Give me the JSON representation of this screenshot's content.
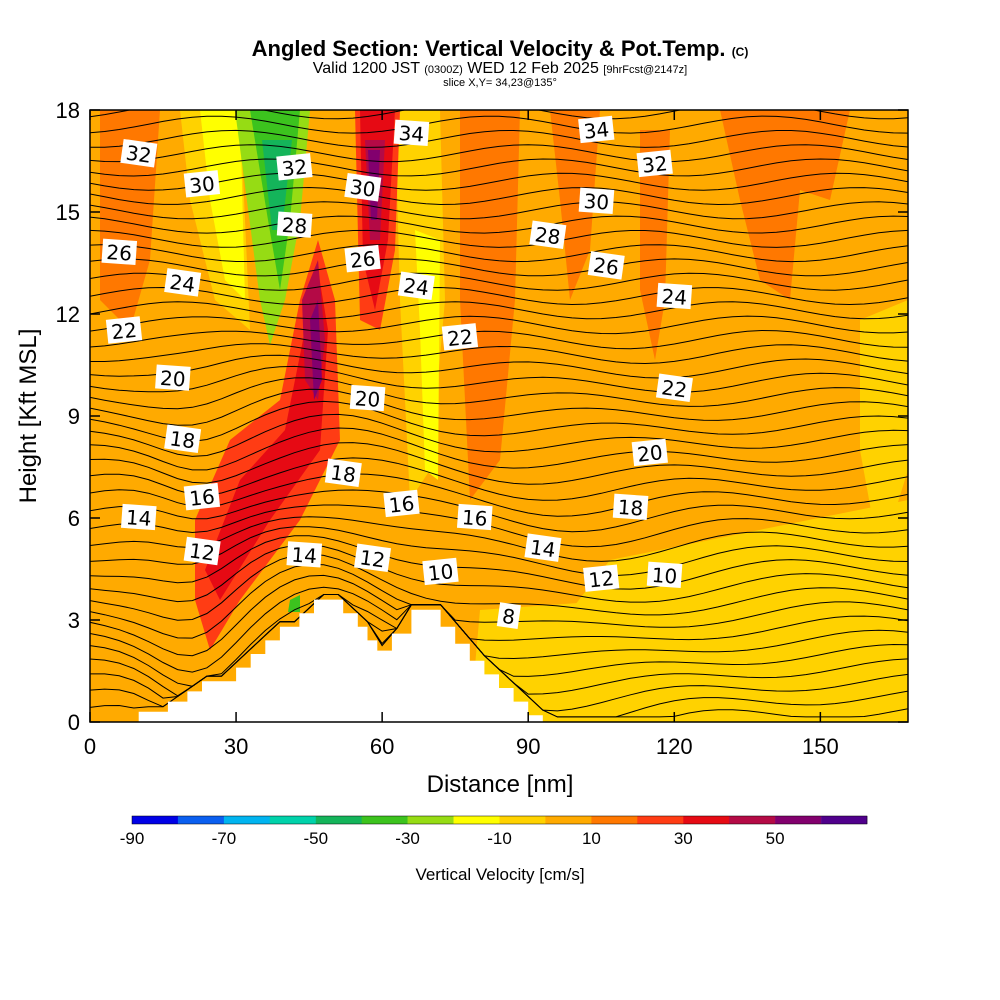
{
  "header": {
    "title": "Angled Section: Vertical Velocity & Pot.Temp.",
    "title_suffix": "(C)",
    "valid_prefix": "Valid 1200 JST",
    "valid_utc": "(0300Z)",
    "valid_date": "WED 12 Feb 2025",
    "forecast": "[9hrFcst@2147z]",
    "slice": "slice X,Y= 34,23@135°"
  },
  "chart_data": {
    "type": "heatmap",
    "xlabel": "Distance [nm]",
    "ylabel": "Height [Kft MSL]",
    "xlim": [
      0,
      168
    ],
    "ylim": [
      0,
      18
    ],
    "xticks": [
      "0",
      "30",
      "60",
      "90",
      "120",
      "150"
    ],
    "yticks": [
      "0",
      "3",
      "6",
      "9",
      "12",
      "15",
      "18"
    ],
    "colorbar": {
      "label": "Vertical Velocity [cm/s]",
      "ticks": [
        "-90",
        "-70",
        "-50",
        "-30",
        "-10",
        "10",
        "30",
        "50"
      ],
      "colors": [
        "#0000e6",
        "#0a5ff0",
        "#00b4f0",
        "#00d2aa",
        "#14b45a",
        "#3cc31e",
        "#96dc14",
        "#ffff00",
        "#ffd200",
        "#ffaa00",
        "#ff7800",
        "#ff3c14",
        "#e60a14",
        "#b40a46",
        "#82006e",
        "#50008c"
      ]
    },
    "terrain": [
      [
        0,
        0
      ],
      [
        10,
        0
      ],
      [
        10,
        0.3
      ],
      [
        16,
        0.3
      ],
      [
        16,
        0.6
      ],
      [
        20,
        0.6
      ],
      [
        20,
        0.9
      ],
      [
        23,
        0.9
      ],
      [
        23,
        1.2
      ],
      [
        30,
        1.2
      ],
      [
        30,
        1.6
      ],
      [
        33,
        1.6
      ],
      [
        33,
        2.0
      ],
      [
        36,
        2.0
      ],
      [
        36,
        2.4
      ],
      [
        39,
        2.4
      ],
      [
        39,
        2.8
      ],
      [
        43,
        2.8
      ],
      [
        43,
        3.2
      ],
      [
        46,
        3.2
      ],
      [
        46,
        3.6
      ],
      [
        52,
        3.6
      ],
      [
        52,
        3.2
      ],
      [
        55,
        3.2
      ],
      [
        55,
        2.8
      ],
      [
        57,
        2.8
      ],
      [
        57,
        2.4
      ],
      [
        59,
        2.4
      ],
      [
        59,
        2.1
      ],
      [
        62,
        2.1
      ],
      [
        62,
        2.6
      ],
      [
        66,
        2.6
      ],
      [
        66,
        3.3
      ],
      [
        72,
        3.3
      ],
      [
        72,
        2.8
      ],
      [
        75,
        2.8
      ],
      [
        75,
        2.3
      ],
      [
        78,
        2.3
      ],
      [
        78,
        1.8
      ],
      [
        81,
        1.8
      ],
      [
        81,
        1.4
      ],
      [
        84,
        1.4
      ],
      [
        84,
        1.0
      ],
      [
        87,
        1.0
      ],
      [
        87,
        0.6
      ],
      [
        90,
        0.6
      ],
      [
        90,
        0.2
      ],
      [
        93,
        0.2
      ],
      [
        93,
        0
      ]
    ],
    "theta_labels": [
      {
        "text": "32",
        "x": 10,
        "y": 16.7
      },
      {
        "text": "30",
        "x": 23,
        "y": 15.8
      },
      {
        "text": "26",
        "x": 6,
        "y": 13.8
      },
      {
        "text": "24",
        "x": 19,
        "y": 12.9
      },
      {
        "text": "22",
        "x": 7,
        "y": 11.5
      },
      {
        "text": "20",
        "x": 17,
        "y": 10.1
      },
      {
        "text": "18",
        "x": 19,
        "y": 8.3
      },
      {
        "text": "16",
        "x": 23,
        "y": 6.6
      },
      {
        "text": "14",
        "x": 10,
        "y": 6.0
      },
      {
        "text": "12",
        "x": 23,
        "y": 5.0
      },
      {
        "text": "32",
        "x": 42,
        "y": 16.3
      },
      {
        "text": "28",
        "x": 42,
        "y": 14.6
      },
      {
        "text": "30",
        "x": 56,
        "y": 15.7
      },
      {
        "text": "26",
        "x": 56,
        "y": 13.6
      },
      {
        "text": "34",
        "x": 66,
        "y": 17.3
      },
      {
        "text": "24",
        "x": 67,
        "y": 12.8
      },
      {
        "text": "22",
        "x": 76,
        "y": 11.3
      },
      {
        "text": "20",
        "x": 57,
        "y": 9.5
      },
      {
        "text": "18",
        "x": 52,
        "y": 7.3
      },
      {
        "text": "16",
        "x": 64,
        "y": 6.4
      },
      {
        "text": "14",
        "x": 44,
        "y": 4.9
      },
      {
        "text": "12",
        "x": 58,
        "y": 4.8
      },
      {
        "text": "10",
        "x": 72,
        "y": 4.4
      },
      {
        "text": "16",
        "x": 79,
        "y": 6.0
      },
      {
        "text": "28",
        "x": 94,
        "y": 14.3
      },
      {
        "text": "34",
        "x": 104,
        "y": 17.4
      },
      {
        "text": "30",
        "x": 104,
        "y": 15.3
      },
      {
        "text": "26",
        "x": 106,
        "y": 13.4
      },
      {
        "text": "32",
        "x": 116,
        "y": 16.4
      },
      {
        "text": "24",
        "x": 120,
        "y": 12.5
      },
      {
        "text": "22",
        "x": 120,
        "y": 9.8
      },
      {
        "text": "20",
        "x": 115,
        "y": 7.9
      },
      {
        "text": "18",
        "x": 111,
        "y": 6.3
      },
      {
        "text": "14",
        "x": 93,
        "y": 5.1
      },
      {
        "text": "12",
        "x": 105,
        "y": 4.2
      },
      {
        "text": "10",
        "x": 118,
        "y": 4.3
      },
      {
        "text": "8",
        "x": 86,
        "y": 3.1
      }
    ]
  }
}
